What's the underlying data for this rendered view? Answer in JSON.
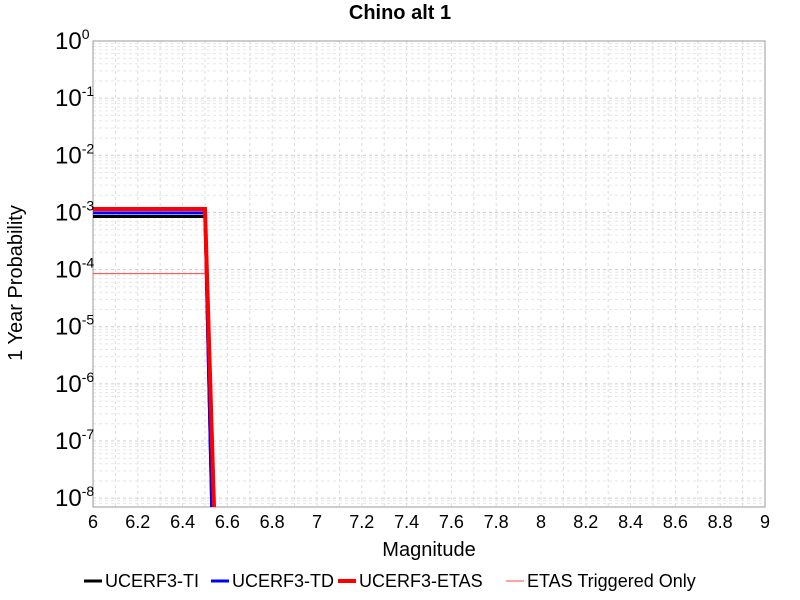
{
  "chart_data": {
    "type": "line",
    "title": "Chino alt 1",
    "xlabel": "Magnitude",
    "ylabel": "1 Year Probability",
    "xlim": [
      6,
      9
    ],
    "ylim": [
      7e-09,
      1
    ],
    "yscale": "log",
    "grid": true,
    "legend_position": "bottom",
    "x_ticks": [
      "6",
      "6.2",
      "6.4",
      "6.6",
      "6.8",
      "7",
      "7.2",
      "7.4",
      "7.6",
      "7.8",
      "8",
      "8.2",
      "8.4",
      "8.6",
      "8.8",
      "9"
    ],
    "y_ticks": [
      {
        "base": "10",
        "exp": "0",
        "value": 1
      },
      {
        "base": "10",
        "exp": "-1",
        "value": 0.1
      },
      {
        "base": "10",
        "exp": "-2",
        "value": 0.01
      },
      {
        "base": "10",
        "exp": "-3",
        "value": 0.001
      },
      {
        "base": "10",
        "exp": "-4",
        "value": 0.0001
      },
      {
        "base": "10",
        "exp": "-5",
        "value": 1e-05
      },
      {
        "base": "10",
        "exp": "-6",
        "value": 1e-06
      },
      {
        "base": "10",
        "exp": "-7",
        "value": 1e-07
      },
      {
        "base": "10",
        "exp": "-8",
        "value": 1e-08
      }
    ],
    "series": [
      {
        "name": "UCERF3-TI",
        "color": "#000000",
        "width": 3,
        "x": [
          6,
          6.5,
          6.5,
          6.53
        ],
        "y": [
          0.00085,
          0.00085,
          0.00085,
          7e-09
        ]
      },
      {
        "name": "UCERF3-TD",
        "color": "#0000ff",
        "width": 3,
        "x": [
          6,
          6.5,
          6.5,
          6.53
        ],
        "y": [
          0.00098,
          0.00098,
          0.00098,
          7e-09
        ]
      },
      {
        "name": "UCERF3-ETAS",
        "color": "#ff0000",
        "width": 4,
        "x": [
          6,
          6.5,
          6.5,
          6.54
        ],
        "y": [
          0.00115,
          0.00115,
          0.00115,
          7e-09
        ]
      },
      {
        "name": "ETAS Triggered Only",
        "color": "#ff4444",
        "width": 1,
        "x": [
          6,
          6.5
        ],
        "y": [
          8.5e-05,
          8.5e-05
        ]
      }
    ]
  }
}
